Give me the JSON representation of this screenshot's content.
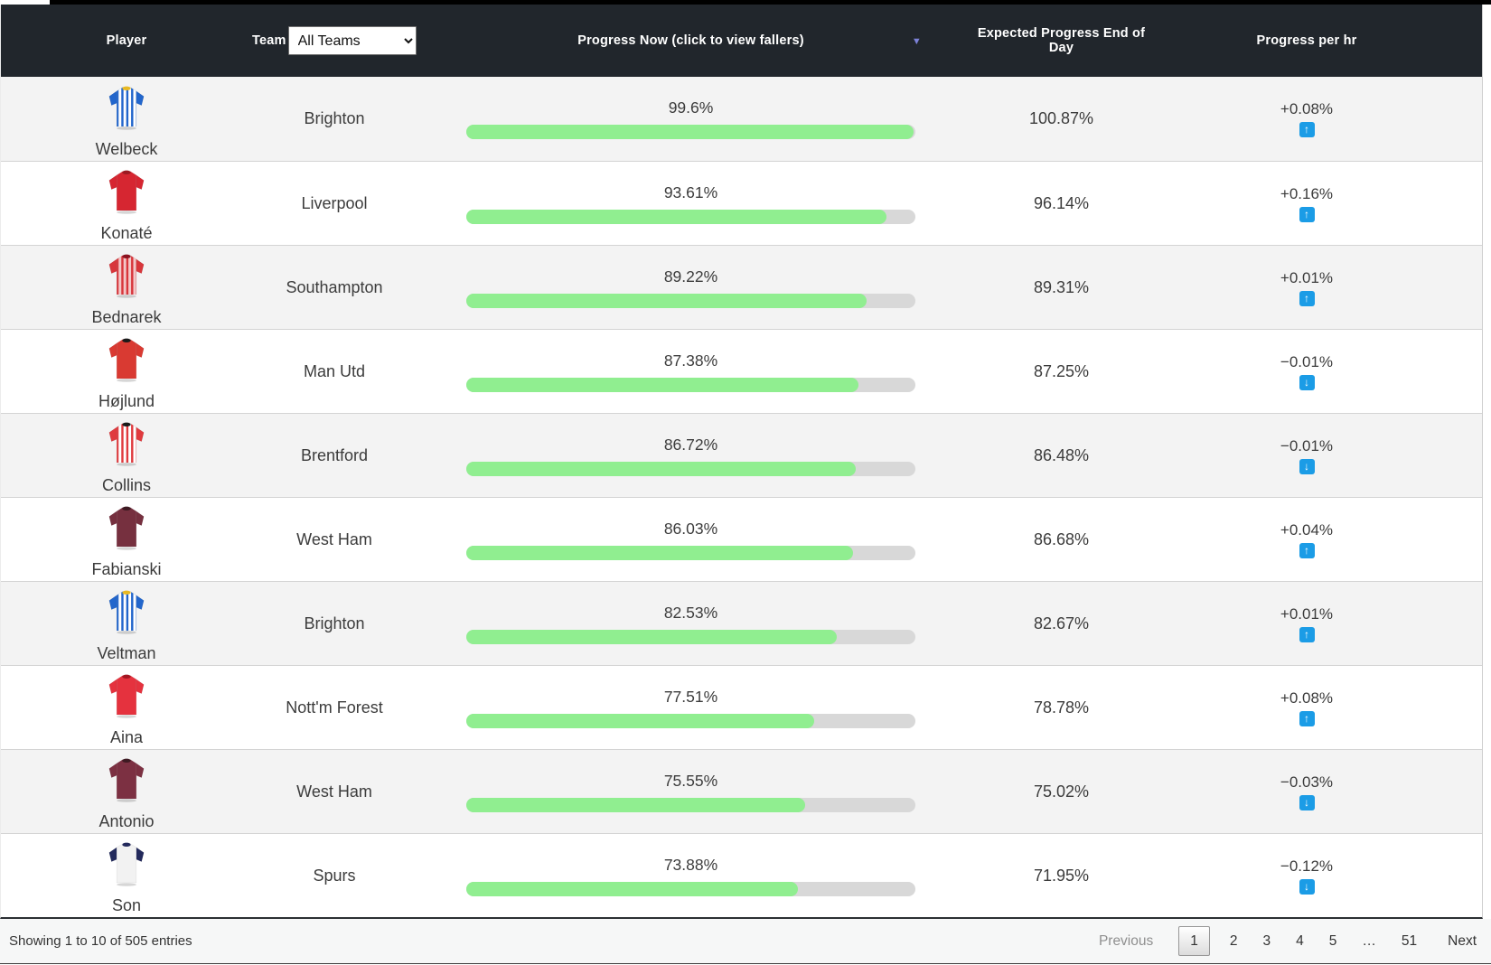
{
  "header": {
    "player_label": "Player",
    "team_label": "Team",
    "team_filter_value": "All Teams",
    "progress_label": "Progress Now (click to view fallers)",
    "expected_label": "Expected Progress End of Day",
    "per_hr_label": "Progress per hr",
    "sort_icon_glyph": "▼"
  },
  "colors": {
    "header_bg": "#21262c",
    "progress_green": "#90ee90",
    "progress_track": "#d8d8d8",
    "trend_blue": "#1b9ce6",
    "sort_arrow_purple": "#7d82d8"
  },
  "rows": [
    {
      "player": "Welbeck",
      "team": "Brighton",
      "progress_now": "99.6%",
      "progress_value": 99.6,
      "expected": "100.87%",
      "per_hr": "+0.08%",
      "direction": "up",
      "kit": {
        "body": "#2266cc",
        "sleeve": "#2266cc",
        "stripe": "#ffffff",
        "collar": "#e8b923"
      }
    },
    {
      "player": "Konaté",
      "team": "Liverpool",
      "progress_now": "93.61%",
      "progress_value": 93.61,
      "expected": "96.14%",
      "per_hr": "+0.16%",
      "direction": "up",
      "kit": {
        "body": "#d62631",
        "sleeve": "#d62631",
        "stripe": null,
        "collar": "#9c1a22"
      }
    },
    {
      "player": "Bednarek",
      "team": "Southampton",
      "progress_now": "89.22%",
      "progress_value": 89.22,
      "expected": "89.31%",
      "per_hr": "+0.01%",
      "direction": "up",
      "kit": {
        "body": "#d8363b",
        "sleeve": "#d8363b",
        "stripe": "#f3c7c8",
        "collar": "#8a1220"
      }
    },
    {
      "player": "Højlund",
      "team": "Man Utd",
      "progress_now": "87.38%",
      "progress_value": 87.38,
      "expected": "87.25%",
      "per_hr": "−0.01%",
      "direction": "down",
      "kit": {
        "body": "#d93a32",
        "sleeve": "#d93a32",
        "stripe": null,
        "collar": "#1a1a1a"
      }
    },
    {
      "player": "Collins",
      "team": "Brentford",
      "progress_now": "86.72%",
      "progress_value": 86.72,
      "expected": "86.48%",
      "per_hr": "−0.01%",
      "direction": "down",
      "kit": {
        "body": "#e03a3e",
        "sleeve": "#e03a3e",
        "stripe": "#ffffff",
        "collar": "#1a1a1a"
      }
    },
    {
      "player": "Fabianski",
      "team": "West Ham",
      "progress_now": "86.03%",
      "progress_value": 86.03,
      "expected": "86.68%",
      "per_hr": "+0.04%",
      "direction": "up",
      "kit": {
        "body": "#76303f",
        "sleeve": "#76303f",
        "stripe": null,
        "collar": "#3d1a22"
      }
    },
    {
      "player": "Veltman",
      "team": "Brighton",
      "progress_now": "82.53%",
      "progress_value": 82.53,
      "expected": "82.67%",
      "per_hr": "+0.01%",
      "direction": "up",
      "kit": {
        "body": "#2266cc",
        "sleeve": "#2266cc",
        "stripe": "#ffffff",
        "collar": "#e8b923"
      }
    },
    {
      "player": "Aina",
      "team": "Nott'm Forest",
      "progress_now": "77.51%",
      "progress_value": 77.51,
      "expected": "78.78%",
      "per_hr": "+0.08%",
      "direction": "up",
      "kit": {
        "body": "#e5323e",
        "sleeve": "#e5323e",
        "stripe": null,
        "collar": "#a31622"
      }
    },
    {
      "player": "Antonio",
      "team": "West Ham",
      "progress_now": "75.55%",
      "progress_value": 75.55,
      "expected": "75.02%",
      "per_hr": "−0.03%",
      "direction": "down",
      "kit": {
        "body": "#7c3042",
        "sleeve": "#7c3042",
        "stripe": null,
        "collar": "#3d1a22"
      }
    },
    {
      "player": "Son",
      "team": "Spurs",
      "progress_now": "73.88%",
      "progress_value": 73.88,
      "expected": "71.95%",
      "per_hr": "−0.12%",
      "direction": "down",
      "kit": {
        "body": "#f2f2f2",
        "sleeve": "#232a5c",
        "stripe": null,
        "collar": "#232a5c"
      }
    }
  ],
  "footer": {
    "showing_text": "Showing 1 to 10 of 505 entries",
    "pagination": {
      "previous": "Previous",
      "pages": [
        "1",
        "2",
        "3",
        "4",
        "5",
        "…",
        "51"
      ],
      "current": "1",
      "next": "Next"
    }
  }
}
